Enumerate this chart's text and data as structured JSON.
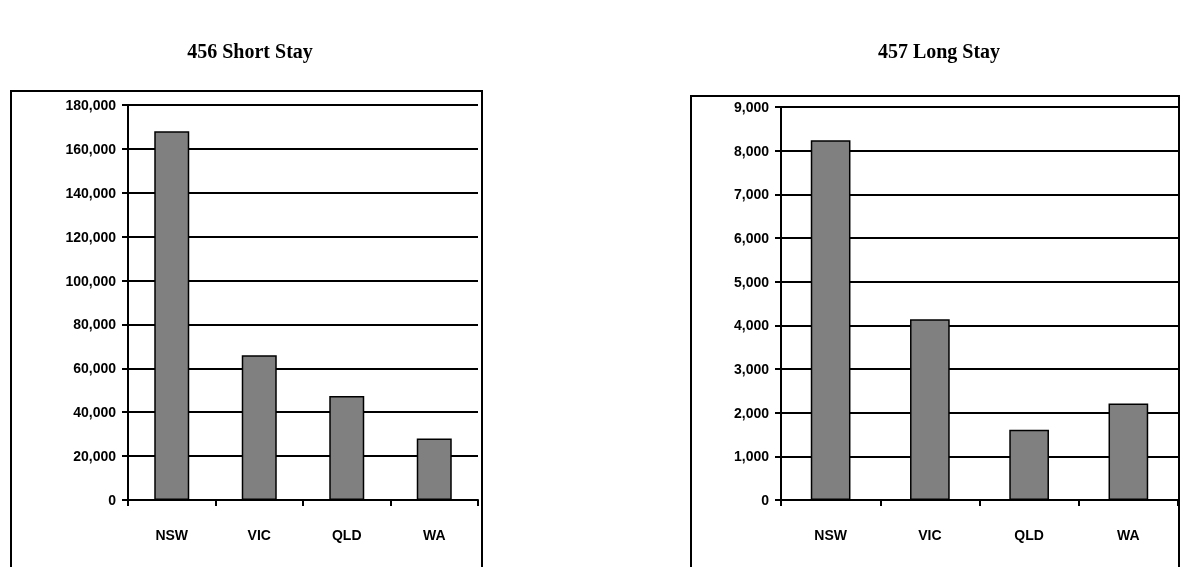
{
  "chart_data": [
    {
      "type": "bar",
      "title": "456 Short Stay",
      "categories": [
        "NSW",
        "VIC",
        "QLD",
        "WA"
      ],
      "values": [
        168000,
        66000,
        47400,
        28000
      ],
      "color": "#808080",
      "ylim": [
        0,
        180000
      ],
      "yticks": [
        {
          "value": 0,
          "label": "0"
        },
        {
          "value": 20000,
          "label": "20,000"
        },
        {
          "value": 40000,
          "label": "40,000"
        },
        {
          "value": 60000,
          "label": "60,000"
        },
        {
          "value": 80000,
          "label": "80,000"
        },
        {
          "value": 100000,
          "label": "100,000"
        },
        {
          "value": 120000,
          "label": "120,000"
        },
        {
          "value": 140000,
          "label": "140,000"
        },
        {
          "value": 160000,
          "label": "160,000"
        },
        {
          "value": 180000,
          "label": "180,000"
        }
      ],
      "grid": "y"
    },
    {
      "type": "bar",
      "title": "457 Long Stay",
      "categories": [
        "NSW",
        "VIC",
        "QLD",
        "WA"
      ],
      "values": [
        8240,
        4140,
        1610,
        2210
      ],
      "color": "#808080",
      "ylim": [
        0,
        9000
      ],
      "yticks": [
        {
          "value": 0,
          "label": "0"
        },
        {
          "value": 1000,
          "label": "1,000"
        },
        {
          "value": 2000,
          "label": "2,000"
        },
        {
          "value": 3000,
          "label": "3,000"
        },
        {
          "value": 4000,
          "label": "4,000"
        },
        {
          "value": 5000,
          "label": "5,000"
        },
        {
          "value": 6000,
          "label": "6,000"
        },
        {
          "value": 7000,
          "label": "7,000"
        },
        {
          "value": 8000,
          "label": "8,000"
        },
        {
          "value": 9000,
          "label": "9,000"
        }
      ],
      "grid": "y"
    }
  ]
}
